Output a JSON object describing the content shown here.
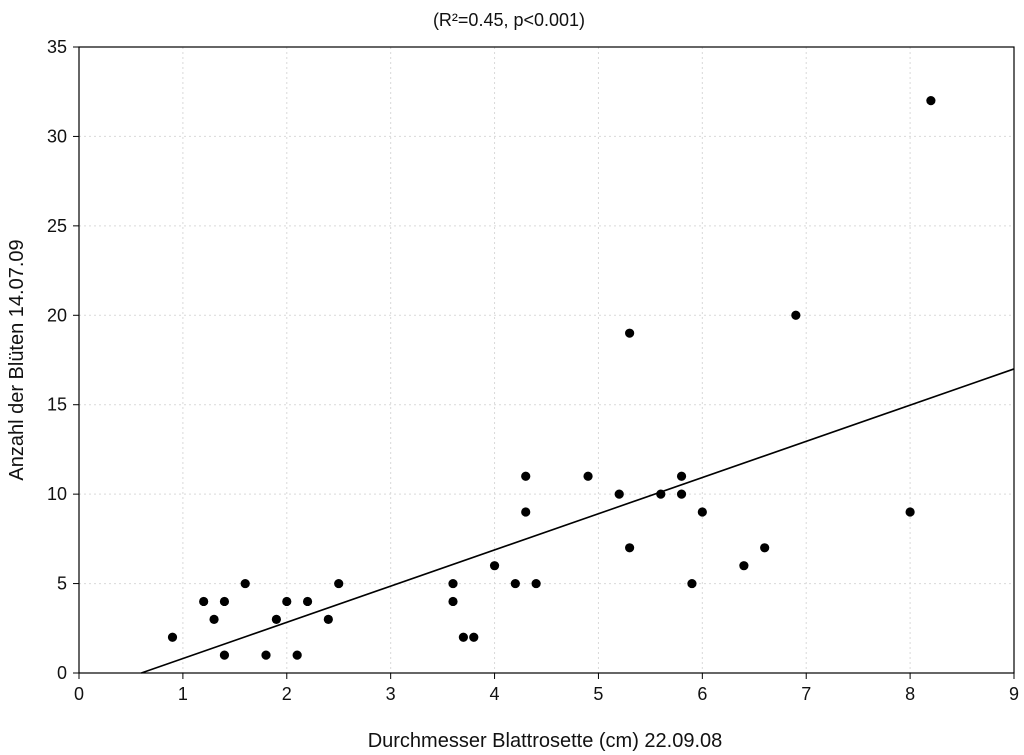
{
  "chart_data": {
    "type": "scatter",
    "title": "(R²=0.45, p<0.001)",
    "xlabel": "Durchmesser Blattrosette (cm) 22.09.08",
    "ylabel": "Anzahl der Blüten 14.07.09",
    "xlim": [
      0,
      9
    ],
    "ylim": [
      0,
      35
    ],
    "xticks": [
      0,
      1,
      2,
      3,
      4,
      5,
      6,
      7,
      8,
      9
    ],
    "yticks": [
      0,
      5,
      10,
      15,
      20,
      25,
      30,
      35
    ],
    "grid": true,
    "points": [
      {
        "x": 0.9,
        "y": 2
      },
      {
        "x": 1.2,
        "y": 4
      },
      {
        "x": 1.3,
        "y": 3
      },
      {
        "x": 1.4,
        "y": 4
      },
      {
        "x": 1.4,
        "y": 1
      },
      {
        "x": 1.6,
        "y": 5
      },
      {
        "x": 1.8,
        "y": 1
      },
      {
        "x": 1.9,
        "y": 3
      },
      {
        "x": 2.0,
        "y": 4
      },
      {
        "x": 2.1,
        "y": 1
      },
      {
        "x": 2.2,
        "y": 4
      },
      {
        "x": 2.4,
        "y": 3
      },
      {
        "x": 2.5,
        "y": 5
      },
      {
        "x": 3.6,
        "y": 5
      },
      {
        "x": 3.6,
        "y": 4
      },
      {
        "x": 3.7,
        "y": 2
      },
      {
        "x": 3.8,
        "y": 2
      },
      {
        "x": 4.0,
        "y": 6
      },
      {
        "x": 4.2,
        "y": 5
      },
      {
        "x": 4.3,
        "y": 11
      },
      {
        "x": 4.3,
        "y": 9
      },
      {
        "x": 4.4,
        "y": 5
      },
      {
        "x": 4.9,
        "y": 11
      },
      {
        "x": 5.2,
        "y": 10
      },
      {
        "x": 5.3,
        "y": 19
      },
      {
        "x": 5.3,
        "y": 7
      },
      {
        "x": 5.6,
        "y": 10
      },
      {
        "x": 5.8,
        "y": 11
      },
      {
        "x": 5.8,
        "y": 10
      },
      {
        "x": 5.9,
        "y": 5
      },
      {
        "x": 6.0,
        "y": 9
      },
      {
        "x": 6.4,
        "y": 6
      },
      {
        "x": 6.6,
        "y": 7
      },
      {
        "x": 6.9,
        "y": 20
      },
      {
        "x": 8.0,
        "y": 9
      },
      {
        "x": 8.2,
        "y": 32
      }
    ],
    "regression_line": {
      "x1": 0.6,
      "y1": 0,
      "x2": 9,
      "y2": 17
    },
    "colors": {
      "marker": "#000000",
      "line": "#000000",
      "grid": "#d9d9d9",
      "axis": "#000000"
    }
  }
}
